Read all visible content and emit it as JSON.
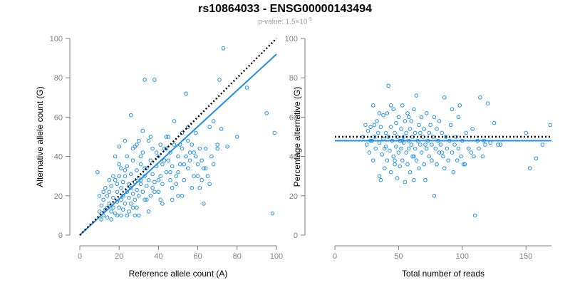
{
  "chart_title": "rs10864033 - ENSG00000143494",
  "pvalue_label": "p-value: 1.5",
  "pvalue_base": "×10",
  "pvalue_exp": "-5",
  "colors": {
    "point": "#1f8fe6",
    "fit": "#1f8fe6",
    "reference": "#000000",
    "axis": "#7f7f7f"
  },
  "chart_data": [
    {
      "type": "scatter",
      "title": "",
      "xlabel": "Reference allele count (A)",
      "ylabel": "Alternative allele count (G)",
      "xlim": [
        0,
        100
      ],
      "ylim": [
        0,
        100
      ],
      "xticks": [
        "0",
        "20",
        "40",
        "60",
        "80",
        "100"
      ],
      "yticks": [
        "0",
        "20",
        "40",
        "60",
        "80",
        "100"
      ],
      "fit_line": {
        "x": [
          0,
          100
        ],
        "y": [
          0,
          92
        ]
      },
      "reference_line": {
        "x": [
          0,
          100
        ],
        "y": [
          0,
          100
        ]
      },
      "points": [
        [
          10,
          12
        ],
        [
          11,
          15
        ],
        [
          12,
          10
        ],
        [
          12,
          18
        ],
        [
          13,
          13
        ],
        [
          14,
          20
        ],
        [
          14,
          9
        ],
        [
          15,
          16
        ],
        [
          15,
          22
        ],
        [
          16,
          12
        ],
        [
          16,
          25
        ],
        [
          17,
          14
        ],
        [
          17,
          19
        ],
        [
          18,
          11
        ],
        [
          18,
          28
        ],
        [
          19,
          17
        ],
        [
          19,
          22
        ],
        [
          20,
          14
        ],
        [
          20,
          30
        ],
        [
          20,
          36
        ],
        [
          21,
          18
        ],
        [
          21,
          24
        ],
        [
          22,
          13
        ],
        [
          22,
          20
        ],
        [
          22,
          27
        ],
        [
          23,
          16
        ],
        [
          23,
          33
        ],
        [
          24,
          22
        ],
        [
          24,
          40
        ],
        [
          25,
          19
        ],
        [
          25,
          26
        ],
        [
          25,
          12
        ],
        [
          26,
          24
        ],
        [
          26,
          31
        ],
        [
          27,
          14
        ],
        [
          27,
          21
        ],
        [
          27,
          38
        ],
        [
          28,
          18
        ],
        [
          28,
          27
        ],
        [
          28,
          45
        ],
        [
          29,
          23
        ],
        [
          29,
          33
        ],
        [
          30,
          20
        ],
        [
          30,
          29
        ],
        [
          30,
          10
        ],
        [
          31,
          26
        ],
        [
          31,
          36
        ],
        [
          32,
          22
        ],
        [
          32,
          42
        ],
        [
          33,
          18
        ],
        [
          33,
          30
        ],
        [
          33,
          79
        ],
        [
          34,
          25
        ],
        [
          34,
          34
        ],
        [
          35,
          28
        ],
        [
          35,
          48
        ],
        [
          36,
          20
        ],
        [
          36,
          38
        ],
        [
          37,
          31
        ],
        [
          37,
          44
        ],
        [
          38,
          27
        ],
        [
          38,
          79
        ],
        [
          39,
          35
        ],
        [
          40,
          22
        ],
        [
          40,
          40
        ],
        [
          41,
          30
        ],
        [
          41,
          46
        ],
        [
          42,
          26
        ],
        [
          42,
          36
        ],
        [
          43,
          44
        ],
        [
          44,
          32
        ],
        [
          44,
          50
        ],
        [
          45,
          38
        ],
        [
          46,
          28
        ],
        [
          46,
          42
        ],
        [
          47,
          24
        ],
        [
          47,
          35
        ],
        [
          48,
          46
        ],
        [
          48,
          58
        ],
        [
          49,
          30
        ],
        [
          50,
          40
        ],
        [
          50,
          20
        ],
        [
          51,
          36
        ],
        [
          52,
          44
        ],
        [
          52,
          52
        ],
        [
          53,
          28
        ],
        [
          54,
          40
        ],
        [
          54,
          72
        ],
        [
          55,
          34
        ],
        [
          55,
          48
        ],
        [
          56,
          38
        ],
        [
          57,
          46
        ],
        [
          58,
          30
        ],
        [
          58,
          42
        ],
        [
          59,
          52
        ],
        [
          60,
          36
        ],
        [
          61,
          44
        ],
        [
          62,
          28
        ],
        [
          62,
          38
        ],
        [
          63,
          16
        ],
        [
          64,
          34
        ],
        [
          65,
          30
        ],
        [
          66,
          55
        ],
        [
          67,
          40
        ],
        [
          68,
          58
        ],
        [
          70,
          44
        ],
        [
          71,
          79
        ],
        [
          73,
          95
        ],
        [
          75,
          45
        ],
        [
          80,
          50
        ],
        [
          85,
          75
        ],
        [
          9,
          32
        ],
        [
          10,
          20
        ],
        [
          11,
          8
        ],
        [
          13,
          24
        ],
        [
          15,
          28
        ],
        [
          16,
          8
        ],
        [
          18,
          40
        ],
        [
          19,
          10
        ],
        [
          20,
          45
        ],
        [
          21,
          34
        ],
        [
          23,
          48
        ],
        [
          24,
          10
        ],
        [
          26,
          61
        ],
        [
          28,
          10
        ],
        [
          29,
          46
        ],
        [
          31,
          40
        ],
        [
          32,
          53
        ],
        [
          34,
          18
        ],
        [
          36,
          50
        ],
        [
          38,
          22
        ],
        [
          39,
          42
        ],
        [
          42,
          16
        ],
        [
          44,
          44
        ],
        [
          45,
          50
        ],
        [
          47,
          18
        ],
        [
          50,
          32
        ],
        [
          52,
          20
        ],
        [
          55,
          55
        ],
        [
          57,
          24
        ],
        [
          60,
          30
        ],
        [
          63,
          34
        ],
        [
          66,
          26
        ],
        [
          72,
          54
        ],
        [
          95,
          62
        ],
        [
          99,
          52
        ],
        [
          98,
          11
        ],
        [
          12,
          22
        ],
        [
          14,
          14
        ],
        [
          17,
          30
        ],
        [
          19,
          26
        ],
        [
          21,
          10
        ],
        [
          23,
          30
        ],
        [
          24,
          35
        ],
        [
          26,
          16
        ],
        [
          27,
          44
        ],
        [
          29,
          14
        ],
        [
          30,
          48
        ],
        [
          31,
          28
        ],
        [
          33,
          34
        ],
        [
          35,
          12
        ],
        [
          37,
          24
        ],
        [
          40,
          28
        ],
        [
          41,
          18
        ],
        [
          43,
          38
        ],
        [
          46,
          32
        ],
        [
          49,
          26
        ],
        [
          51,
          46
        ],
        [
          53,
          36
        ],
        [
          56,
          42
        ],
        [
          59,
          40
        ],
        [
          61,
          24
        ],
        [
          64,
          44
        ],
        [
          68,
          36
        ],
        [
          70,
          46
        ]
      ]
    },
    {
      "type": "scatter",
      "title": "",
      "xlabel": "Total number of reads",
      "ylabel": "Percentage alternative (G)",
      "xlim": [
        0,
        170
      ],
      "ylim": [
        0,
        100
      ],
      "xticks": [
        "0",
        "50",
        "100",
        "150"
      ],
      "yticks": [
        "0",
        "20",
        "40",
        "60",
        "80",
        "100"
      ],
      "fit_line": {
        "x": [
          0,
          170
        ],
        "y": [
          48,
          48
        ]
      },
      "reference_line": {
        "x": [
          0,
          170
        ],
        "y": [
          50,
          50
        ]
      },
      "points": [
        [
          22,
          50
        ],
        [
          24,
          56
        ],
        [
          25,
          46
        ],
        [
          26,
          53
        ],
        [
          27,
          42
        ],
        [
          28,
          55
        ],
        [
          29,
          48
        ],
        [
          30,
          66
        ],
        [
          30,
          38
        ],
        [
          31,
          50
        ],
        [
          32,
          44
        ],
        [
          33,
          58
        ],
        [
          34,
          52
        ],
        [
          35,
          30
        ],
        [
          35,
          47
        ],
        [
          36,
          28
        ],
        [
          36,
          55
        ],
        [
          37,
          41
        ],
        [
          38,
          61
        ],
        [
          38,
          49
        ],
        [
          39,
          34
        ],
        [
          40,
          52
        ],
        [
          40,
          45
        ],
        [
          41,
          62
        ],
        [
          41,
          38
        ],
        [
          42,
          76
        ],
        [
          42,
          50
        ],
        [
          43,
          43
        ],
        [
          44,
          55
        ],
        [
          44,
          32
        ],
        [
          45,
          48
        ],
        [
          46,
          64
        ],
        [
          46,
          40
        ],
        [
          47,
          52
        ],
        [
          47,
          36
        ],
        [
          48,
          57
        ],
        [
          48,
          45
        ],
        [
          49,
          50
        ],
        [
          49,
          29
        ],
        [
          50,
          42
        ],
        [
          50,
          60
        ],
        [
          51,
          48
        ],
        [
          51,
          35
        ],
        [
          52,
          54
        ],
        [
          52,
          44
        ],
        [
          53,
          66
        ],
        [
          53,
          38
        ],
        [
          54,
          50
        ],
        [
          54,
          47
        ],
        [
          55,
          27
        ],
        [
          55,
          58
        ],
        [
          56,
          42
        ],
        [
          56,
          52
        ],
        [
          57,
          36
        ],
        [
          57,
          62
        ],
        [
          58,
          48
        ],
        [
          58,
          44
        ],
        [
          59,
          54
        ],
        [
          59,
          32
        ],
        [
          60,
          46
        ],
        [
          60,
          58
        ],
        [
          61,
          40
        ],
        [
          61,
          50
        ],
        [
          62,
          28
        ],
        [
          62,
          64
        ],
        [
          63,
          52
        ],
        [
          63,
          44
        ],
        [
          64,
          71
        ],
        [
          64,
          38
        ],
        [
          65,
          48
        ],
        [
          66,
          56
        ],
        [
          66,
          34
        ],
        [
          67,
          46
        ],
        [
          68,
          60
        ],
        [
          68,
          42
        ],
        [
          69,
          50
        ],
        [
          70,
          36
        ],
        [
          70,
          54
        ],
        [
          71,
          28
        ],
        [
          72,
          44
        ],
        [
          72,
          62
        ],
        [
          73,
          48
        ],
        [
          74,
          52
        ],
        [
          74,
          40
        ],
        [
          75,
          56
        ],
        [
          76,
          38
        ],
        [
          76,
          46
        ],
        [
          77,
          50
        ],
        [
          78,
          60
        ],
        [
          78,
          20
        ],
        [
          79,
          44
        ],
        [
          80,
          54
        ],
        [
          80,
          36
        ],
        [
          81,
          48
        ],
        [
          82,
          58
        ],
        [
          82,
          42
        ],
        [
          83,
          46
        ],
        [
          84,
          52
        ],
        [
          85,
          40
        ],
        [
          86,
          70
        ],
        [
          86,
          34
        ],
        [
          87,
          50
        ],
        [
          88,
          44
        ],
        [
          89,
          38
        ],
        [
          90,
          48
        ],
        [
          91,
          56
        ],
        [
          92,
          42
        ],
        [
          93,
          32
        ],
        [
          94,
          46
        ],
        [
          95,
          50
        ],
        [
          96,
          38
        ],
        [
          97,
          44
        ],
        [
          98,
          66
        ],
        [
          99,
          40
        ],
        [
          100,
          48
        ],
        [
          102,
          36
        ],
        [
          103,
          52
        ],
        [
          105,
          44
        ],
        [
          107,
          42
        ],
        [
          108,
          54
        ],
        [
          110,
          10
        ],
        [
          112,
          48
        ],
        [
          114,
          70
        ],
        [
          116,
          40
        ],
        [
          118,
          46
        ],
        [
          120,
          67
        ],
        [
          122,
          47
        ],
        [
          125,
          57
        ],
        [
          128,
          46
        ],
        [
          150,
          52
        ],
        [
          153,
          34
        ],
        [
          158,
          39
        ],
        [
          163,
          46
        ],
        [
          169,
          56
        ],
        [
          97,
          60
        ],
        [
          92,
          64
        ],
        [
          67,
          52
        ],
        [
          58,
          60
        ],
        [
          44,
          66
        ],
        [
          35,
          62
        ],
        [
          28,
          48
        ],
        [
          31,
          56
        ],
        [
          39,
          44
        ],
        [
          47,
          38
        ],
        [
          53,
          48
        ],
        [
          62,
          40
        ],
        [
          71,
          46
        ],
        [
          84,
          42
        ],
        [
          101,
          36
        ],
        [
          109,
          40
        ],
        [
          113,
          44
        ],
        [
          117,
          48
        ],
        [
          130,
          46
        ]
      ]
    }
  ]
}
